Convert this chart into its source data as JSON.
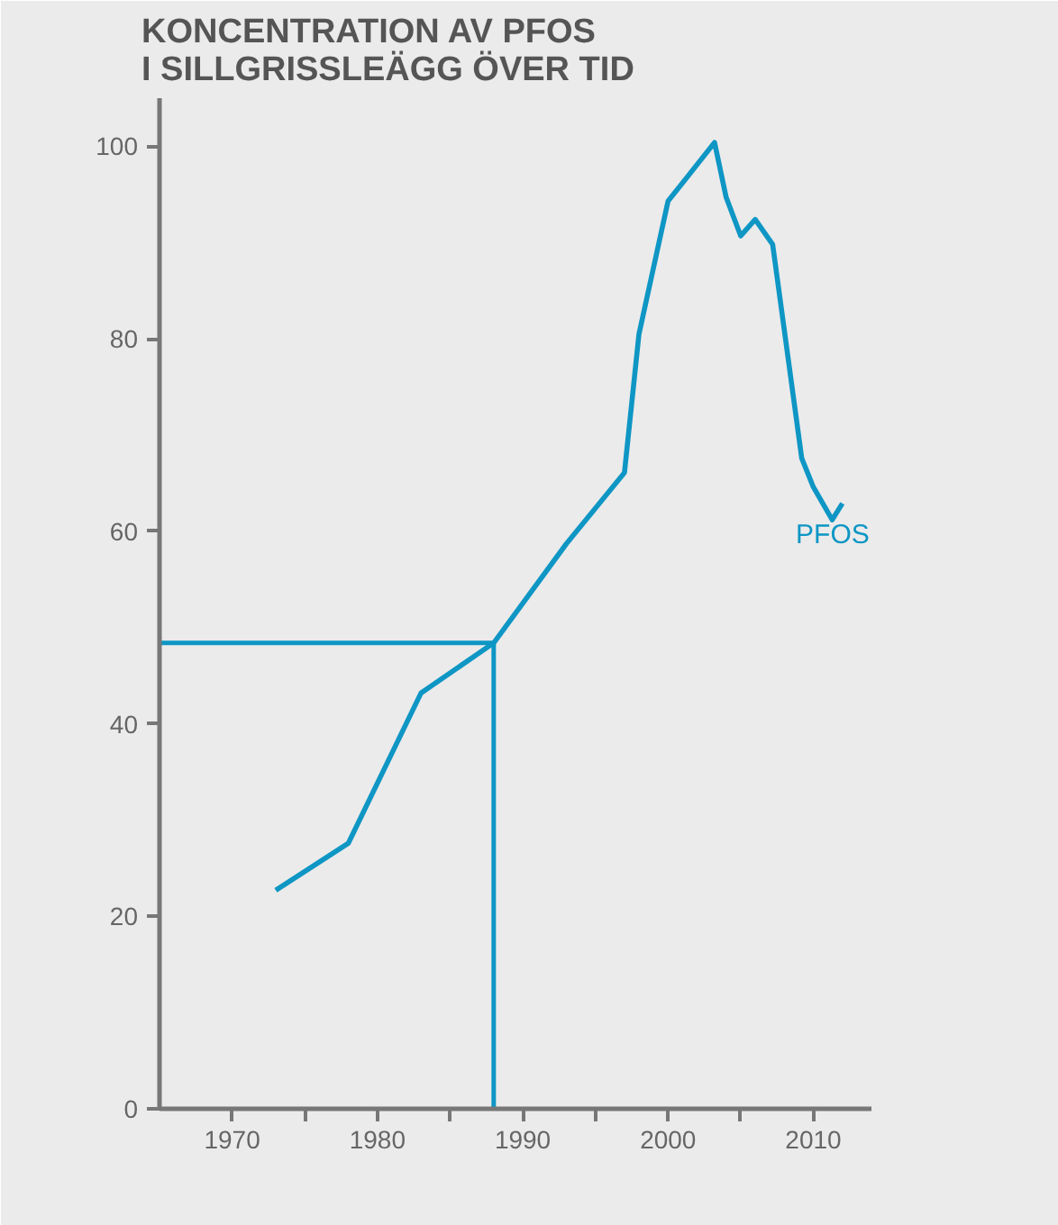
{
  "chart_data": {
    "type": "line",
    "title": "KONCENTRATION AV PFOS\nI SILLGRISSLEÄGG ÖVER TID",
    "x": [
      1973,
      1978,
      1983,
      1988,
      1993,
      1997,
      1998,
      2000,
      2003.2,
      2004,
      2005,
      2006,
      2007.2,
      2009.2,
      2010,
      2011.3,
      2012
    ],
    "series": [
      {
        "name": "PFOS",
        "color": "#0e96c4",
        "values": [
          22.7,
          27.6,
          43.2,
          48.4,
          58.7,
          66.1,
          80.5,
          94.3,
          100.4,
          94.7,
          90.7,
          92.4,
          89.8,
          67.6,
          64.6,
          61.2,
          62.9
        ]
      }
    ],
    "xlim": [
      1965,
      2014
    ],
    "ylim": [
      0,
      105
    ],
    "xticks": [
      1970,
      {
        "value": 1975,
        "label": null
      },
      1980,
      {
        "value": 1985,
        "label": null
      },
      1990,
      {
        "value": 1995,
        "label": null
      },
      2000,
      {
        "value": 2005,
        "label": null
      },
      2010
    ],
    "yticks": [
      0,
      20,
      40,
      60,
      80,
      100
    ],
    "ref_lines": [
      {
        "axis": "x",
        "value": 1988,
        "label": null,
        "color": "#0e96c4"
      },
      {
        "axis": "y",
        "value": 48.4,
        "label": null,
        "color": "#0e96c4"
      }
    ],
    "grid": false,
    "legend": false,
    "line_style": "solid",
    "marker": "none"
  }
}
